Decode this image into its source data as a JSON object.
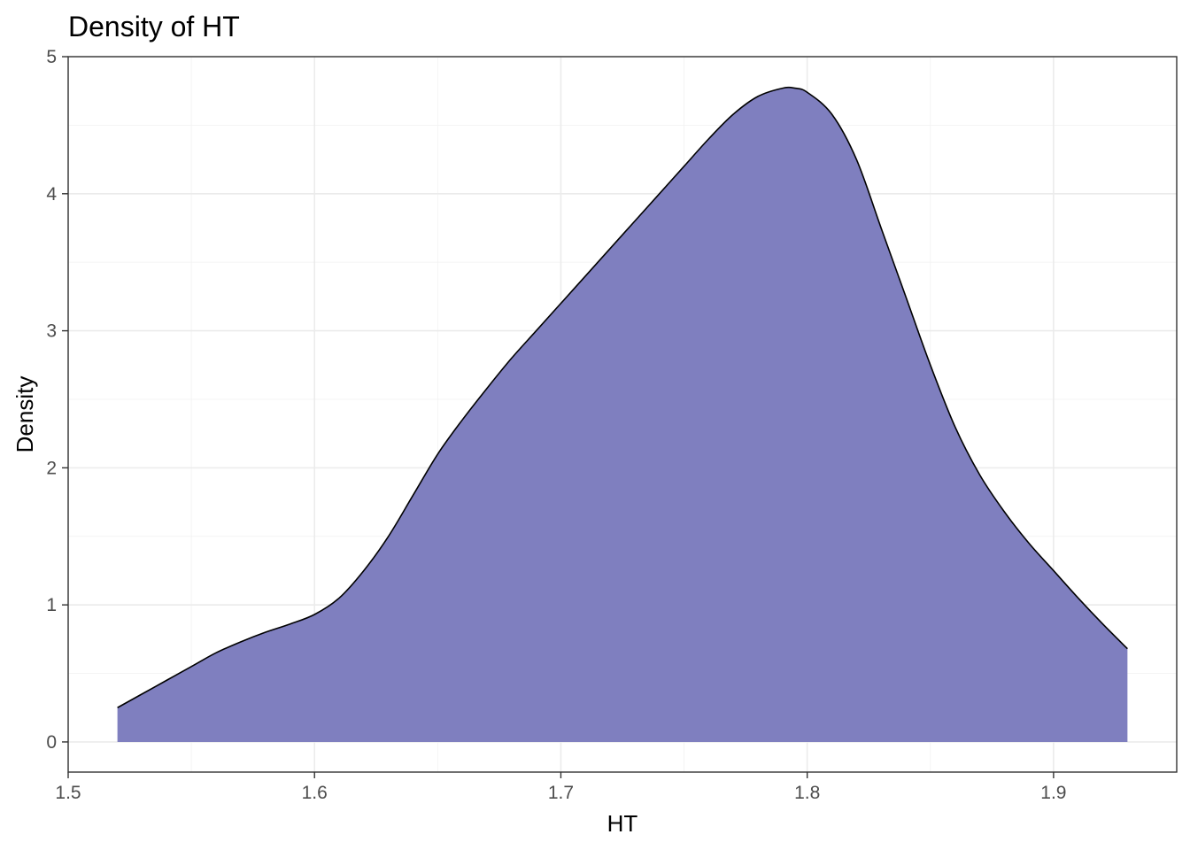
{
  "chart_data": {
    "type": "area",
    "title": "Density of HT",
    "xlabel": "HT",
    "ylabel": "Density",
    "xlim": [
      1.5,
      1.95
    ],
    "ylim": [
      -0.22,
      5
    ],
    "x_ticks": [
      1.5,
      1.6,
      1.7,
      1.8,
      1.9
    ],
    "x_tick_labels": [
      "1.5",
      "1.6",
      "1.7",
      "1.8",
      "1.9"
    ],
    "y_ticks": [
      0,
      1,
      2,
      3,
      4,
      5
    ],
    "y_tick_labels": [
      "0",
      "1",
      "2",
      "3",
      "4",
      "5"
    ],
    "grid": true,
    "fill_color": "#7f7fbf",
    "line_color": "#000000",
    "x": [
      1.52,
      1.535,
      1.55,
      1.56,
      1.57,
      1.58,
      1.59,
      1.6,
      1.61,
      1.62,
      1.63,
      1.64,
      1.65,
      1.66,
      1.67,
      1.68,
      1.69,
      1.7,
      1.71,
      1.72,
      1.73,
      1.74,
      1.75,
      1.76,
      1.77,
      1.78,
      1.79,
      1.795,
      1.8,
      1.81,
      1.82,
      1.83,
      1.84,
      1.85,
      1.86,
      1.87,
      1.88,
      1.89,
      1.9,
      1.91,
      1.92,
      1.93
    ],
    "y": [
      0.25,
      0.4,
      0.55,
      0.65,
      0.73,
      0.8,
      0.86,
      0.93,
      1.05,
      1.25,
      1.5,
      1.8,
      2.1,
      2.35,
      2.58,
      2.8,
      3.0,
      3.2,
      3.4,
      3.6,
      3.8,
      4.0,
      4.2,
      4.4,
      4.58,
      4.71,
      4.77,
      4.77,
      4.74,
      4.58,
      4.25,
      3.75,
      3.25,
      2.75,
      2.3,
      1.95,
      1.68,
      1.45,
      1.25,
      1.05,
      0.86,
      0.68
    ]
  }
}
